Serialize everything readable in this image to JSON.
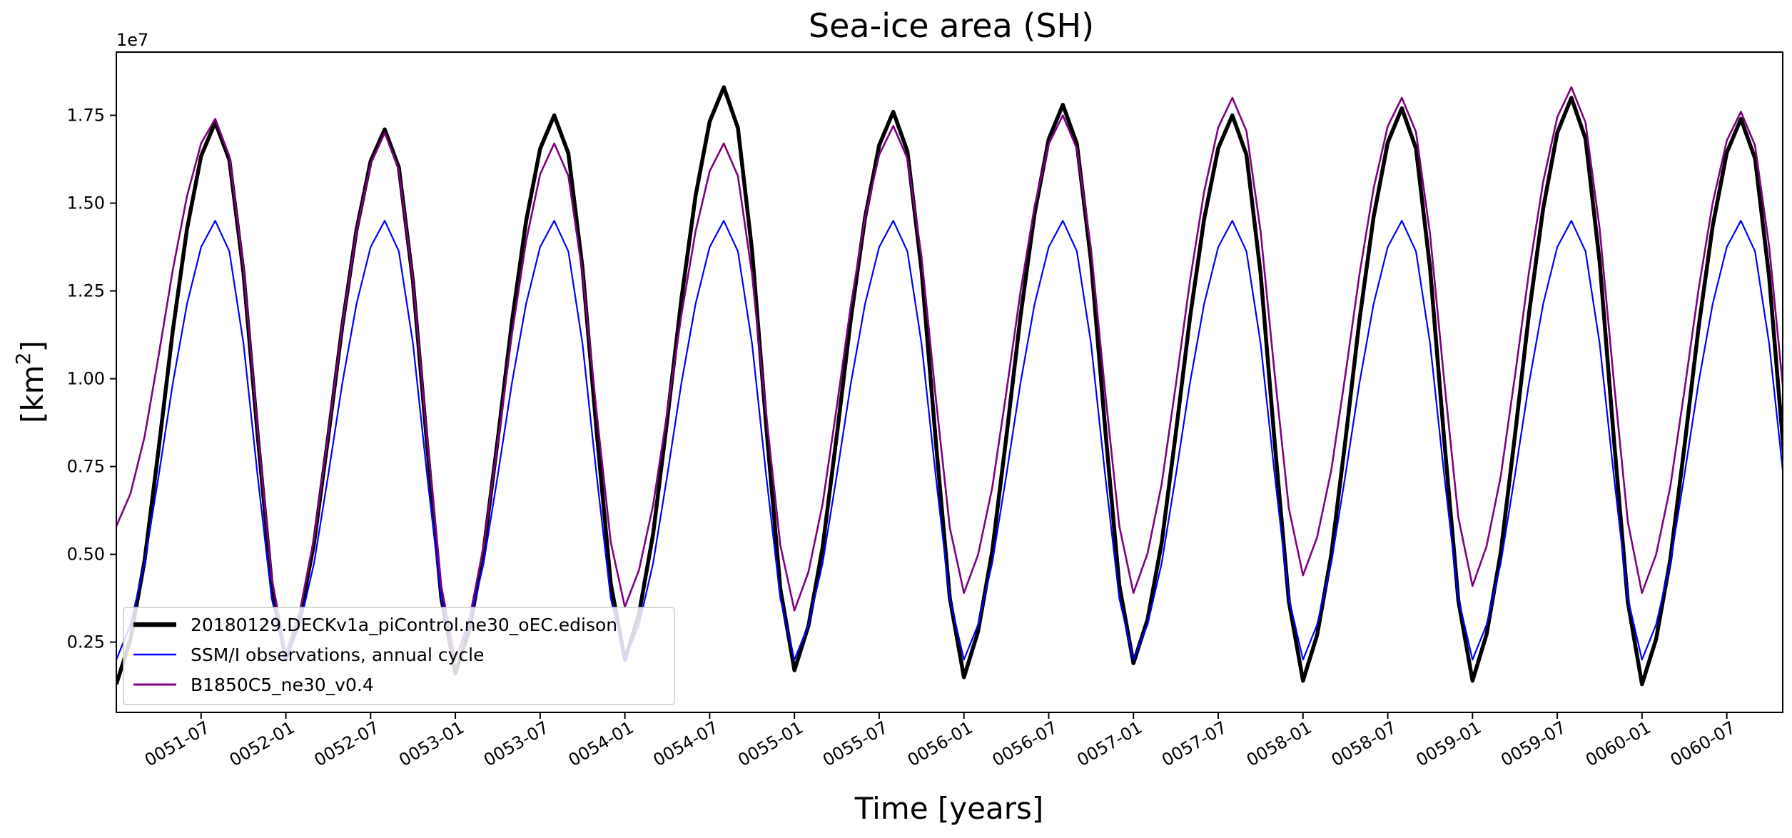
{
  "chart_data": {
    "type": "line",
    "title": "Sea-ice area (SH)",
    "xlabel": "Time [years]",
    "ylabel_base": "[km",
    "ylabel_sup": "2",
    "ylabel_close": "]",
    "y_offset_label": "1e7",
    "y_scale": 10000000,
    "xlim": [
      0.0,
      9.83
    ],
    "ylim": [
      0.05,
      1.93
    ],
    "x_ticks": [
      {
        "x": 0.5,
        "label": "0051-07"
      },
      {
        "x": 1.0,
        "label": "0052-01"
      },
      {
        "x": 1.5,
        "label": "0052-07"
      },
      {
        "x": 2.0,
        "label": "0053-01"
      },
      {
        "x": 2.5,
        "label": "0053-07"
      },
      {
        "x": 3.0,
        "label": "0054-01"
      },
      {
        "x": 3.5,
        "label": "0054-07"
      },
      {
        "x": 4.0,
        "label": "0055-01"
      },
      {
        "x": 4.5,
        "label": "0055-07"
      },
      {
        "x": 5.0,
        "label": "0056-01"
      },
      {
        "x": 5.5,
        "label": "0056-07"
      },
      {
        "x": 6.0,
        "label": "0057-01"
      },
      {
        "x": 6.5,
        "label": "0057-07"
      },
      {
        "x": 7.0,
        "label": "0058-01"
      },
      {
        "x": 7.5,
        "label": "0058-07"
      },
      {
        "x": 8.0,
        "label": "0059-01"
      },
      {
        "x": 8.5,
        "label": "0059-07"
      },
      {
        "x": 9.0,
        "label": "0060-01"
      },
      {
        "x": 9.5,
        "label": "0060-07"
      }
    ],
    "y_ticks": [
      {
        "y": 0.25,
        "label": "0.25"
      },
      {
        "y": 0.5,
        "label": "0.50"
      },
      {
        "y": 0.75,
        "label": "0.75"
      },
      {
        "y": 1.0,
        "label": "1.00"
      },
      {
        "y": 1.25,
        "label": "1.25"
      },
      {
        "y": 1.5,
        "label": "1.50"
      },
      {
        "y": 1.75,
        "label": "1.75"
      }
    ],
    "legend_position": "lower-left",
    "series": [
      {
        "name": "20180129.DECKv1a_piControl.ne30_oEC.edison",
        "color": "#000000",
        "width": 5.5,
        "peak_x": [
          0.67,
          1.67,
          2.67,
          3.67,
          4.67,
          5.67,
          6.67,
          7.67,
          8.67,
          9.67
        ],
        "peaks": [
          1.73,
          1.71,
          1.75,
          1.83,
          1.76,
          1.78,
          1.75,
          1.77,
          1.8,
          1.74
        ],
        "min_x": [
          0.08,
          1.08,
          2.08,
          3.08,
          4.08,
          5.08,
          6.08,
          7.08,
          8.08,
          9.08
        ],
        "mins": [
          0.13,
          0.2,
          0.16,
          0.2,
          0.17,
          0.15,
          0.19,
          0.14,
          0.14,
          0.13
        ]
      },
      {
        "name": "SSM/I observations, annual cycle",
        "color": "#0000ff",
        "width": 2.2,
        "peak_x": [
          0.67,
          1.67,
          2.67,
          3.67,
          4.67,
          5.67,
          6.67,
          7.67,
          8.67,
          9.67
        ],
        "peaks": [
          1.45,
          1.45,
          1.45,
          1.45,
          1.45,
          1.45,
          1.45,
          1.45,
          1.45,
          1.45
        ],
        "min_x": [
          0.08,
          1.08,
          2.08,
          3.08,
          4.08,
          5.08,
          6.08,
          7.08,
          8.08,
          9.08
        ],
        "mins": [
          0.2,
          0.2,
          0.2,
          0.2,
          0.2,
          0.2,
          0.2,
          0.2,
          0.2,
          0.2
        ]
      },
      {
        "name": "B1850C5_ne30_v0.4",
        "color": "#800080",
        "width": 2.6,
        "peak_x": [
          0.67,
          1.67,
          2.67,
          3.67,
          4.67,
          5.67,
          6.67,
          7.67,
          8.67,
          9.67
        ],
        "peaks": [
          1.74,
          1.7,
          1.67,
          1.67,
          1.72,
          1.75,
          1.8,
          1.8,
          1.83,
          1.76
        ],
        "min_x": [
          0.0,
          1.08,
          2.08,
          3.08,
          4.08,
          5.08,
          6.08,
          7.08,
          8.08,
          9.08
        ],
        "mins": [
          0.58,
          0.22,
          0.2,
          0.35,
          0.34,
          0.39,
          0.39,
          0.44,
          0.41,
          0.39
        ]
      }
    ]
  }
}
